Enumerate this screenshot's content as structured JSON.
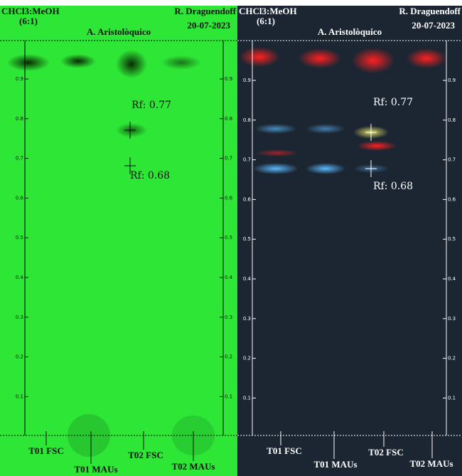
{
  "panels": [
    {
      "header": {
        "solvent": "CHCl3:MeOH",
        "ratio": "(6:1)",
        "compound": "A. Aristolòquico",
        "author": "R. Draguendoff",
        "date": "20-07-2023"
      },
      "scale": [
        "0.9",
        "0.8",
        "0.7",
        "0.6",
        "0.5",
        "0.4",
        "0.3",
        "0.2",
        "0.1"
      ],
      "rf_labels": [
        "Rf: 0.77",
        "Rf: 0.68"
      ],
      "lanes": [
        "T01 FSC",
        "T01 MAUs",
        "T02 FSC",
        "T02 MAUs"
      ]
    },
    {
      "header": {
        "solvent": "CHCl3:MeOH",
        "ratio": "(6:1)",
        "compound": "A. Aristolòquico",
        "author": "R. Draguendoff",
        "date": "20-07-2023"
      },
      "scale": [
        "0.9",
        "0.8",
        "0.7",
        "0.6",
        "0.5",
        "0.4",
        "0.3",
        "0.2",
        "0.1"
      ],
      "rf_labels": [
        "Rf: 0.77",
        "Rf: 0.68"
      ],
      "lanes": [
        "T01 FSC",
        "T01 MAUs",
        "T02 FSC",
        "T02 MAUs"
      ]
    }
  ]
}
